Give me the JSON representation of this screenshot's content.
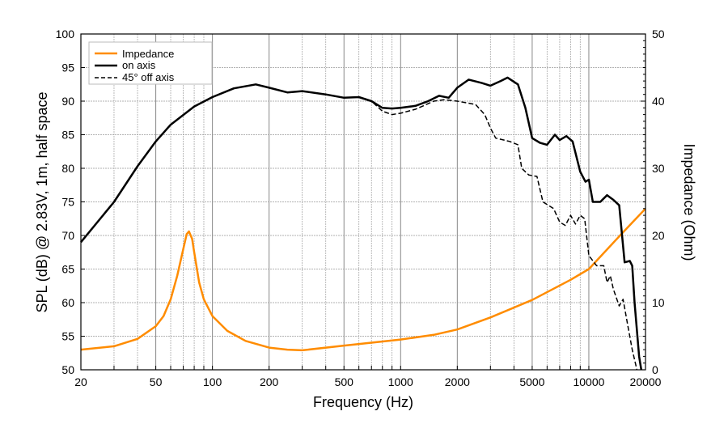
{
  "chart_data": {
    "type": "line",
    "xlabel": "Frequency (Hz)",
    "ylabel": "SPL (dB) @ 2.83V, 1m, half space",
    "y2label": "Impedance (Ohm)",
    "x_scale": "log",
    "xlim": [
      20,
      20000
    ],
    "ylim": [
      50,
      100
    ],
    "y2lim": [
      0,
      50
    ],
    "grid": true,
    "legend_position": "top-left",
    "x_ticks": [
      20,
      50,
      100,
      200,
      500,
      1000,
      2000,
      5000,
      10000,
      20000
    ],
    "y_ticks": [
      50,
      55,
      60,
      65,
      70,
      75,
      80,
      85,
      90,
      95,
      100
    ],
    "y2_ticks": [
      0,
      10,
      20,
      30,
      40,
      50
    ],
    "series": [
      {
        "name": "Impedance",
        "axis": "right",
        "color": "#ff8c00",
        "style": "solid",
        "x": [
          20,
          30,
          40,
          50,
          55,
          60,
          65,
          70,
          73,
          75,
          78,
          80,
          85,
          90,
          100,
          120,
          150,
          200,
          250,
          300,
          500,
          1000,
          1500,
          2000,
          3000,
          5000,
          8000,
          10000,
          15000,
          20000
        ],
        "y": [
          3,
          3.5,
          4.6,
          6.5,
          8,
          10.5,
          14,
          18,
          20.2,
          20.6,
          19.5,
          17.5,
          13,
          10.5,
          8,
          5.8,
          4.3,
          3.3,
          3,
          2.9,
          3.6,
          4.5,
          5.2,
          6,
          7.8,
          10.4,
          13.4,
          15,
          20.3,
          24
        ]
      },
      {
        "name": "on axis",
        "axis": "left",
        "color": "#000000",
        "style": "solid",
        "x": [
          20,
          30,
          40,
          50,
          60,
          80,
          100,
          130,
          170,
          200,
          250,
          300,
          400,
          500,
          600,
          700,
          800,
          900,
          1000,
          1200,
          1400,
          1600,
          1800,
          2000,
          2300,
          2700,
          3000,
          3400,
          3700,
          4200,
          4600,
          5000,
          5500,
          6000,
          6600,
          7000,
          7600,
          8200,
          9000,
          9600,
          10000,
          10500,
          11500,
          12500,
          13500,
          14500,
          15500,
          16500,
          17000,
          17500,
          18500,
          19000
        ],
        "y": [
          69,
          75,
          80.3,
          84,
          86.5,
          89.2,
          90.6,
          91.9,
          92.5,
          92,
          91.3,
          91.5,
          91,
          90.5,
          90.6,
          90,
          89,
          88.9,
          89,
          89.3,
          90,
          90.8,
          90.5,
          92,
          93.2,
          92.7,
          92.3,
          93,
          93.5,
          92.5,
          89,
          84.5,
          83.8,
          83.5,
          85,
          84.2,
          84.8,
          84,
          79.5,
          78,
          78.3,
          75,
          75,
          76,
          75.3,
          74.5,
          66,
          66.2,
          65.5,
          60,
          52,
          50
        ]
      },
      {
        "name": "45° off axis",
        "axis": "left",
        "color": "#000000",
        "style": "dashed",
        "x": [
          20,
          30,
          40,
          50,
          60,
          80,
          100,
          130,
          170,
          200,
          250,
          300,
          400,
          500,
          600,
          700,
          800,
          900,
          1000,
          1200,
          1500,
          1700,
          2000,
          2500,
          2800,
          3000,
          3200,
          3800,
          4200,
          4400,
          4800,
          5300,
          5700,
          6500,
          7000,
          7500,
          8000,
          8500,
          9000,
          9500,
          10000,
          11000,
          12000,
          12500,
          13000,
          13500,
          14500,
          15200,
          16000,
          17000,
          18000
        ],
        "y": [
          69,
          75,
          80.3,
          84,
          86.5,
          89.2,
          90.6,
          91.9,
          92.5,
          92,
          91.3,
          91.5,
          91,
          90.5,
          90.6,
          90,
          88.5,
          88,
          88.2,
          88.8,
          90,
          90.2,
          90,
          89.5,
          88,
          86,
          84.5,
          84,
          83.5,
          80,
          79,
          78.8,
          75,
          74,
          72,
          71.5,
          73,
          71.7,
          73,
          72.5,
          67,
          65.5,
          65.5,
          63,
          64,
          62,
          59.5,
          60.5,
          57,
          53,
          50
        ]
      }
    ]
  }
}
